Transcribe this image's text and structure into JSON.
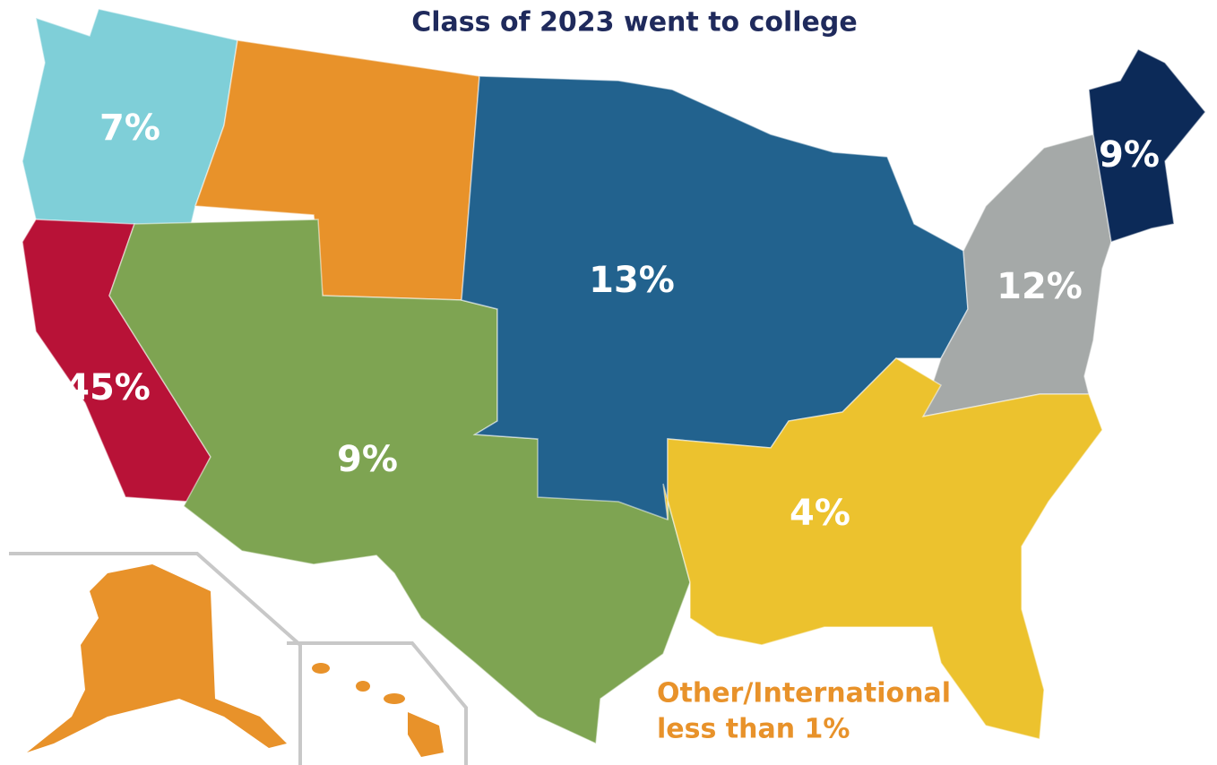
{
  "title": "Class of 2023 went to college",
  "regions": [
    {
      "label": "7%"
    },
    {
      "label": "45%"
    },
    {
      "label": "9%"
    },
    {
      "label": "13%"
    },
    {
      "label": "4%"
    },
    {
      "label": "12%"
    },
    {
      "label": "9%"
    }
  ],
  "note": {
    "line1": "Other/International",
    "line2": "less than 1%"
  }
}
